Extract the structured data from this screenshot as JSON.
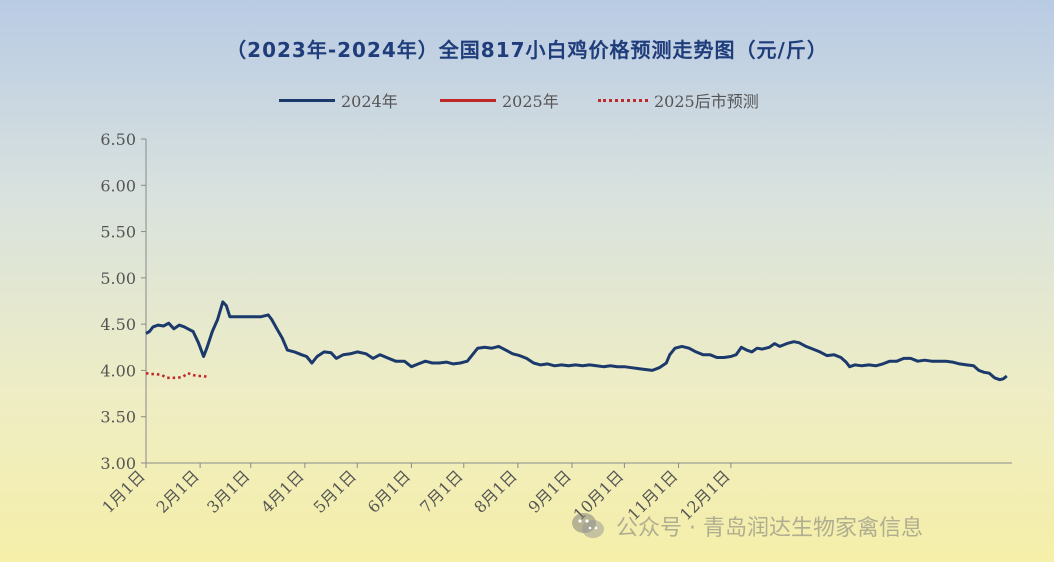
{
  "chart_data": {
    "type": "line",
    "title": "（2023年-2024年）全国817小白鸡价格预测走势图（元/斤）",
    "xlabel": "",
    "ylabel": "",
    "ylim": [
      3.0,
      6.5
    ],
    "yticks": [
      "6.50",
      "6.00",
      "5.50",
      "5.00",
      "4.50",
      "4.00",
      "3.50",
      "3.00"
    ],
    "x_tick_labels": [
      "1月1日",
      "2月1日",
      "3月1日",
      "4月1日",
      "5月1日",
      "6月1日",
      "7月1日",
      "8月1日",
      "9月1日",
      "10月1日",
      "11月1日",
      "12月1日"
    ],
    "x_unit": "day of year (1 = Jan 1)",
    "grid": false,
    "legend_position": "top-center",
    "series": [
      {
        "name": "2024年",
        "style": "solid",
        "color": "#1b3a6b",
        "points": [
          [
            1,
            4.4
          ],
          [
            3,
            4.42
          ],
          [
            5,
            4.47
          ],
          [
            8,
            4.49
          ],
          [
            11,
            4.48
          ],
          [
            14,
            4.51
          ],
          [
            17,
            4.45
          ],
          [
            20,
            4.49
          ],
          [
            23,
            4.47
          ],
          [
            25,
            4.45
          ],
          [
            28,
            4.42
          ],
          [
            31,
            4.3
          ],
          [
            34,
            4.15
          ],
          [
            36,
            4.25
          ],
          [
            39,
            4.42
          ],
          [
            42,
            4.55
          ],
          [
            45,
            4.74
          ],
          [
            47,
            4.7
          ],
          [
            49,
            4.58
          ],
          [
            55,
            4.58
          ],
          [
            61,
            4.58
          ],
          [
            67,
            4.58
          ],
          [
            71,
            4.6
          ],
          [
            73,
            4.55
          ],
          [
            76,
            4.45
          ],
          [
            79,
            4.35
          ],
          [
            82,
            4.22
          ],
          [
            86,
            4.2
          ],
          [
            90,
            4.17
          ],
          [
            93,
            4.15
          ],
          [
            96,
            4.08
          ],
          [
            99,
            4.15
          ],
          [
            103,
            4.2
          ],
          [
            107,
            4.19
          ],
          [
            110,
            4.13
          ],
          [
            114,
            4.17
          ],
          [
            118,
            4.18
          ],
          [
            122,
            4.2
          ],
          [
            127,
            4.18
          ],
          [
            131,
            4.13
          ],
          [
            135,
            4.17
          ],
          [
            140,
            4.13
          ],
          [
            144,
            4.1
          ],
          [
            149,
            4.1
          ],
          [
            153,
            4.04
          ],
          [
            157,
            4.07
          ],
          [
            161,
            4.1
          ],
          [
            165,
            4.08
          ],
          [
            169,
            4.08
          ],
          [
            173,
            4.09
          ],
          [
            177,
            4.07
          ],
          [
            181,
            4.08
          ],
          [
            185,
            4.1
          ],
          [
            188,
            4.17
          ],
          [
            191,
            4.24
          ],
          [
            195,
            4.25
          ],
          [
            199,
            4.24
          ],
          [
            203,
            4.26
          ],
          [
            207,
            4.22
          ],
          [
            211,
            4.18
          ],
          [
            215,
            4.16
          ],
          [
            219,
            4.13
          ],
          [
            223,
            4.08
          ],
          [
            227,
            4.06
          ],
          [
            231,
            4.07
          ],
          [
            235,
            4.05
          ],
          [
            239,
            4.06
          ],
          [
            243,
            4.05
          ],
          [
            247,
            4.06
          ],
          [
            251,
            4.05
          ],
          [
            255,
            4.06
          ],
          [
            259,
            4.05
          ],
          [
            263,
            4.04
          ],
          [
            267,
            4.05
          ],
          [
            271,
            4.04
          ],
          [
            275,
            4.04
          ],
          [
            279,
            4.03
          ],
          [
            283,
            4.02
          ],
          [
            287,
            4.01
          ],
          [
            291,
            4.0
          ],
          [
            295,
            4.03
          ],
          [
            299,
            4.08
          ],
          [
            301,
            4.17
          ],
          [
            304,
            4.24
          ],
          [
            308,
            4.26
          ],
          [
            312,
            4.24
          ],
          [
            316,
            4.2
          ],
          [
            320,
            4.17
          ],
          [
            324,
            4.17
          ],
          [
            328,
            4.14
          ],
          [
            332,
            4.14
          ],
          [
            336,
            4.15
          ],
          [
            339,
            4.17
          ],
          [
            342,
            4.25
          ],
          [
            345,
            4.22
          ],
          [
            348,
            4.2
          ],
          [
            351,
            4.24
          ],
          [
            354,
            4.23
          ],
          [
            358,
            4.25
          ],
          [
            361,
            4.29
          ],
          [
            364,
            4.26
          ],
          [
            368,
            4.29
          ],
          [
            372,
            4.31
          ],
          [
            375,
            4.3
          ],
          [
            379,
            4.26
          ],
          [
            383,
            4.23
          ],
          [
            387,
            4.2
          ],
          [
            391,
            4.16
          ],
          [
            395,
            4.17
          ],
          [
            399,
            4.14
          ],
          [
            402,
            4.09
          ],
          [
            404,
            4.04
          ],
          [
            407,
            4.06
          ],
          [
            411,
            4.05
          ],
          [
            415,
            4.06
          ],
          [
            419,
            4.05
          ],
          [
            423,
            4.07
          ],
          [
            427,
            4.1
          ],
          [
            431,
            4.1
          ],
          [
            435,
            4.13
          ],
          [
            439,
            4.13
          ],
          [
            443,
            4.1
          ],
          [
            447,
            4.11
          ],
          [
            451,
            4.1
          ],
          [
            455,
            4.1
          ],
          [
            459,
            4.1
          ],
          [
            463,
            4.09
          ],
          [
            467,
            4.07
          ],
          [
            471,
            4.06
          ],
          [
            475,
            4.05
          ],
          [
            478,
            4.0
          ],
          [
            481,
            3.98
          ],
          [
            484,
            3.97
          ],
          [
            487,
            3.92
          ],
          [
            490,
            3.9
          ],
          [
            492,
            3.91
          ],
          [
            494,
            3.94
          ]
        ]
      },
      {
        "name": "2025年",
        "style": "solid",
        "color": "#c0292a",
        "points": []
      },
      {
        "name": "2025后市预测",
        "style": "dotted",
        "color": "#c0292a",
        "points": [
          [
            1,
            3.97
          ],
          [
            4,
            3.96
          ],
          [
            7,
            3.96
          ],
          [
            10,
            3.95
          ],
          [
            13,
            3.92
          ],
          [
            16,
            3.92
          ],
          [
            19,
            3.92
          ],
          [
            22,
            3.93
          ],
          [
            25,
            3.97
          ],
          [
            28,
            3.95
          ],
          [
            31,
            3.94
          ],
          [
            34,
            3.94
          ],
          [
            36,
            3.93
          ]
        ]
      }
    ]
  },
  "watermark": {
    "icon": "wechat-icon",
    "text": "公众号 · 青岛润达生物家禽信息"
  }
}
